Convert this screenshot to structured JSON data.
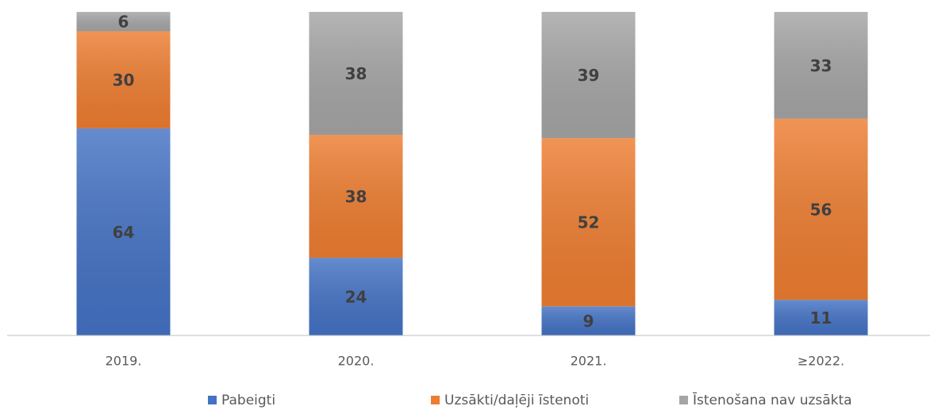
{
  "chart_data": {
    "type": "stacked_bar",
    "categories": [
      "2019.",
      "2020.",
      "2021.",
      "≥2022."
    ],
    "series": [
      {
        "name": "Pabeigti",
        "color": "#4472c4",
        "values": [
          64,
          24,
          9,
          11
        ]
      },
      {
        "name": "Uzsākti/daļēji īstenoti",
        "color": "#ed7d31",
        "values": [
          30,
          38,
          52,
          56
        ]
      },
      {
        "name": "Īstenošana nav uzsākta",
        "color": "#a5a5a5",
        "values": [
          6,
          38,
          39,
          33
        ]
      }
    ],
    "ylim": [
      0,
      100
    ],
    "legend": "bottom"
  }
}
